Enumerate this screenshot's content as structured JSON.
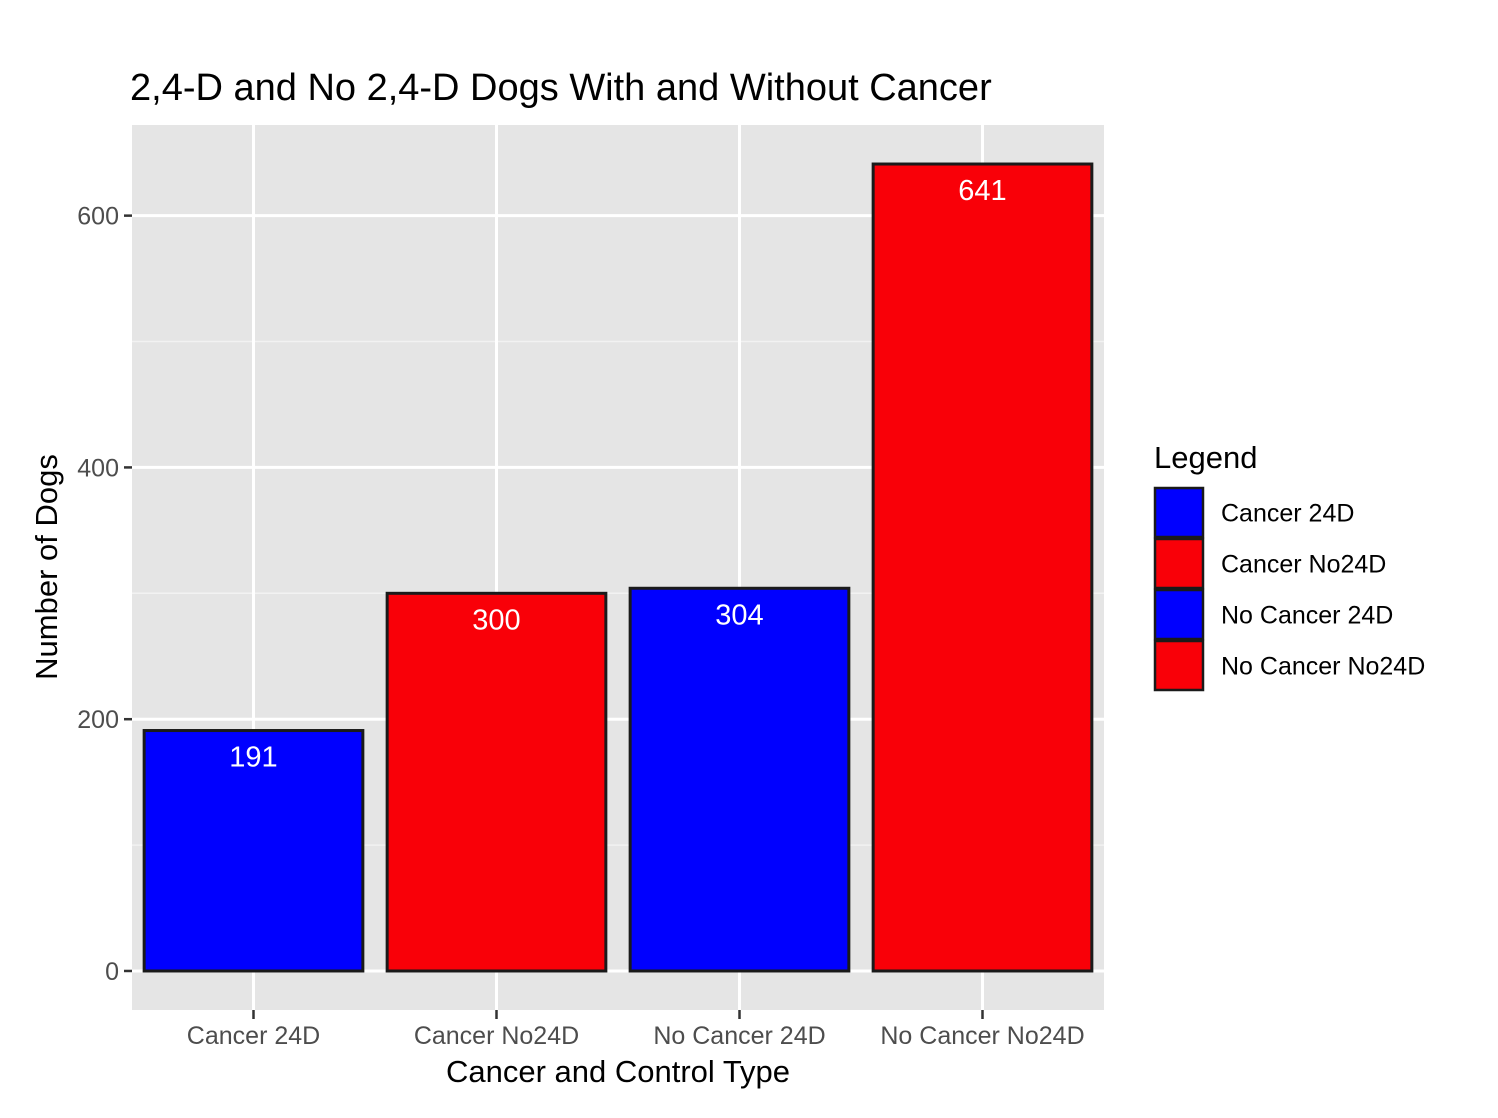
{
  "chart_data": {
    "type": "bar",
    "title": "2,4-D and No 2,4-D Dogs With and Without Cancer",
    "xlabel": "Cancer and Control Type",
    "ylabel": "Number of Dogs",
    "categories": [
      "Cancer 24D",
      "Cancer No24D",
      "No Cancer 24D",
      "No Cancer No24D"
    ],
    "values": [
      191,
      300,
      304,
      641
    ],
    "data_labels": [
      "191",
      "300",
      "304",
      "641"
    ],
    "bar_colors": [
      "#0000ff",
      "#f90008",
      "#0000ff",
      "#f90008"
    ],
    "ylim": [
      -31,
      672
    ],
    "yticks": [
      0,
      200,
      400,
      600
    ],
    "ytick_labels": [
      "0",
      "200",
      "400",
      "600"
    ],
    "grid": true,
    "legend": {
      "title": "Legend",
      "placement": "right",
      "items": [
        {
          "label": "Cancer 24D",
          "color": "#0000ff"
        },
        {
          "label": "Cancer No24D",
          "color": "#f90008"
        },
        {
          "label": "No Cancer 24D",
          "color": "#0000ff"
        },
        {
          "label": "No Cancer No24D",
          "color": "#f90008"
        }
      ]
    },
    "colors": {
      "panel_background": "#e5e5e5",
      "grid_major": "#ffffff",
      "grid_minor": "#f2f2f2",
      "bar_outline": "#1a1a1a",
      "tick_text": "#4d4d4d"
    }
  }
}
